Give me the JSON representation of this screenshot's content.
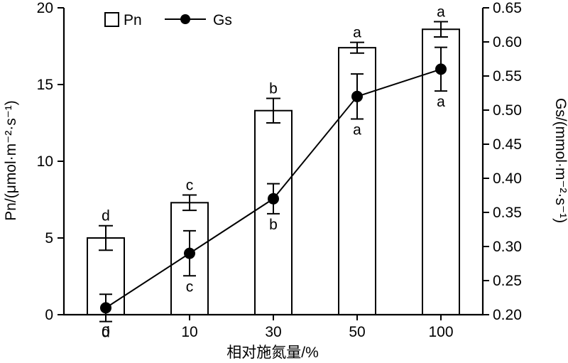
{
  "chart_data": {
    "type": "bar+line",
    "xlabel": "相对施氮量/%",
    "categories": [
      "0",
      "10",
      "30",
      "50",
      "100"
    ],
    "left_axis": {
      "label": "Pn/(μmol·m⁻²·s⁻¹)",
      "ylim": [
        0,
        20
      ],
      "ticks": [
        "0",
        "5",
        "10",
        "15",
        "20"
      ]
    },
    "right_axis": {
      "label": "Gs/(mmol·m⁻²·s⁻¹)",
      "ylim": [
        0.2,
        0.65
      ],
      "ticks": [
        "0.20",
        "0.25",
        "0.30",
        "0.35",
        "0.40",
        "0.45",
        "0.50",
        "0.55",
        "0.60",
        "0.65"
      ]
    },
    "legend": {
      "position": "top-left",
      "entries": [
        "Pn",
        "Gs"
      ]
    },
    "series": [
      {
        "name": "Pn",
        "type": "bar",
        "axis": "left",
        "values": [
          5.0,
          7.3,
          13.3,
          17.4,
          18.6
        ],
        "errors": [
          0.8,
          0.5,
          0.8,
          0.35,
          0.5
        ],
        "letters": [
          "d",
          "c",
          "b",
          "a",
          "a"
        ]
      },
      {
        "name": "Gs",
        "type": "line",
        "axis": "right",
        "values": [
          0.21,
          0.29,
          0.37,
          0.52,
          0.56
        ],
        "errors": [
          0.02,
          0.033,
          0.022,
          0.033,
          0.032
        ],
        "letters": [
          "d",
          "c",
          "b",
          "a",
          "a"
        ]
      }
    ]
  }
}
